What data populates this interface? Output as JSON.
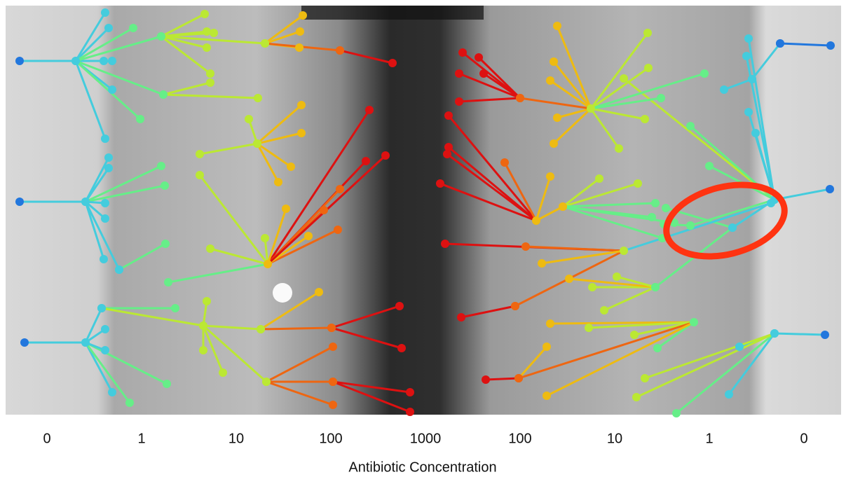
{
  "axis": {
    "labels": [
      "0",
      "1",
      "10",
      "100",
      "1000",
      "100",
      "10",
      "1",
      "0"
    ],
    "title": "Antibiotic Concentration"
  }
}
